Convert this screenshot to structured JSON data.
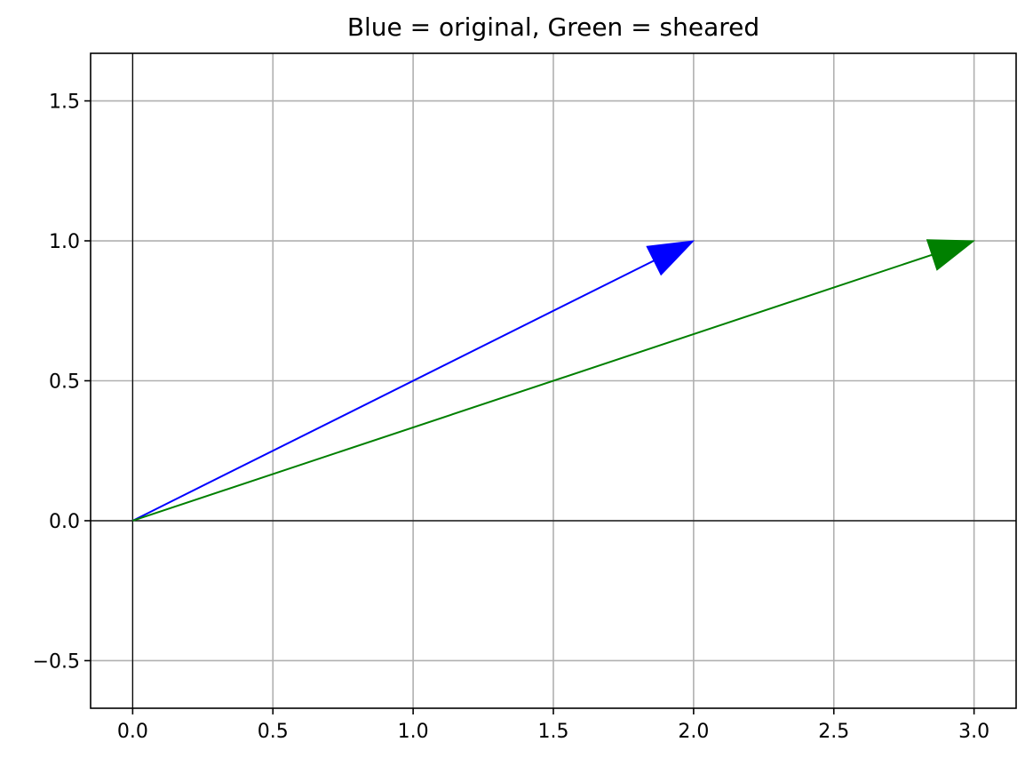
{
  "chart_data": {
    "type": "quiver",
    "title": "Blue = original, Green = sheared",
    "xlabel": "",
    "ylabel": "",
    "xlim": [
      -0.15,
      3.15
    ],
    "ylim": [
      -0.67,
      1.67
    ],
    "xticks": [
      0.0,
      0.5,
      1.0,
      1.5,
      2.0,
      2.5,
      3.0
    ],
    "xtick_labels": [
      "0.0",
      "0.5",
      "1.0",
      "1.5",
      "2.0",
      "2.5",
      "3.0"
    ],
    "yticks": [
      -0.5,
      0.0,
      0.5,
      1.0,
      1.5
    ],
    "ytick_labels": [
      "−0.5",
      "0.0",
      "0.5",
      "1.0",
      "1.5"
    ],
    "grid": true,
    "axis_lines_at_zero": true,
    "series": [
      {
        "color": "#0000ff",
        "origin": [
          0,
          0
        ],
        "tip": [
          2,
          1
        ]
      },
      {
        "color": "#008000",
        "origin": [
          0,
          0
        ],
        "tip": [
          3,
          1
        ]
      }
    ]
  }
}
